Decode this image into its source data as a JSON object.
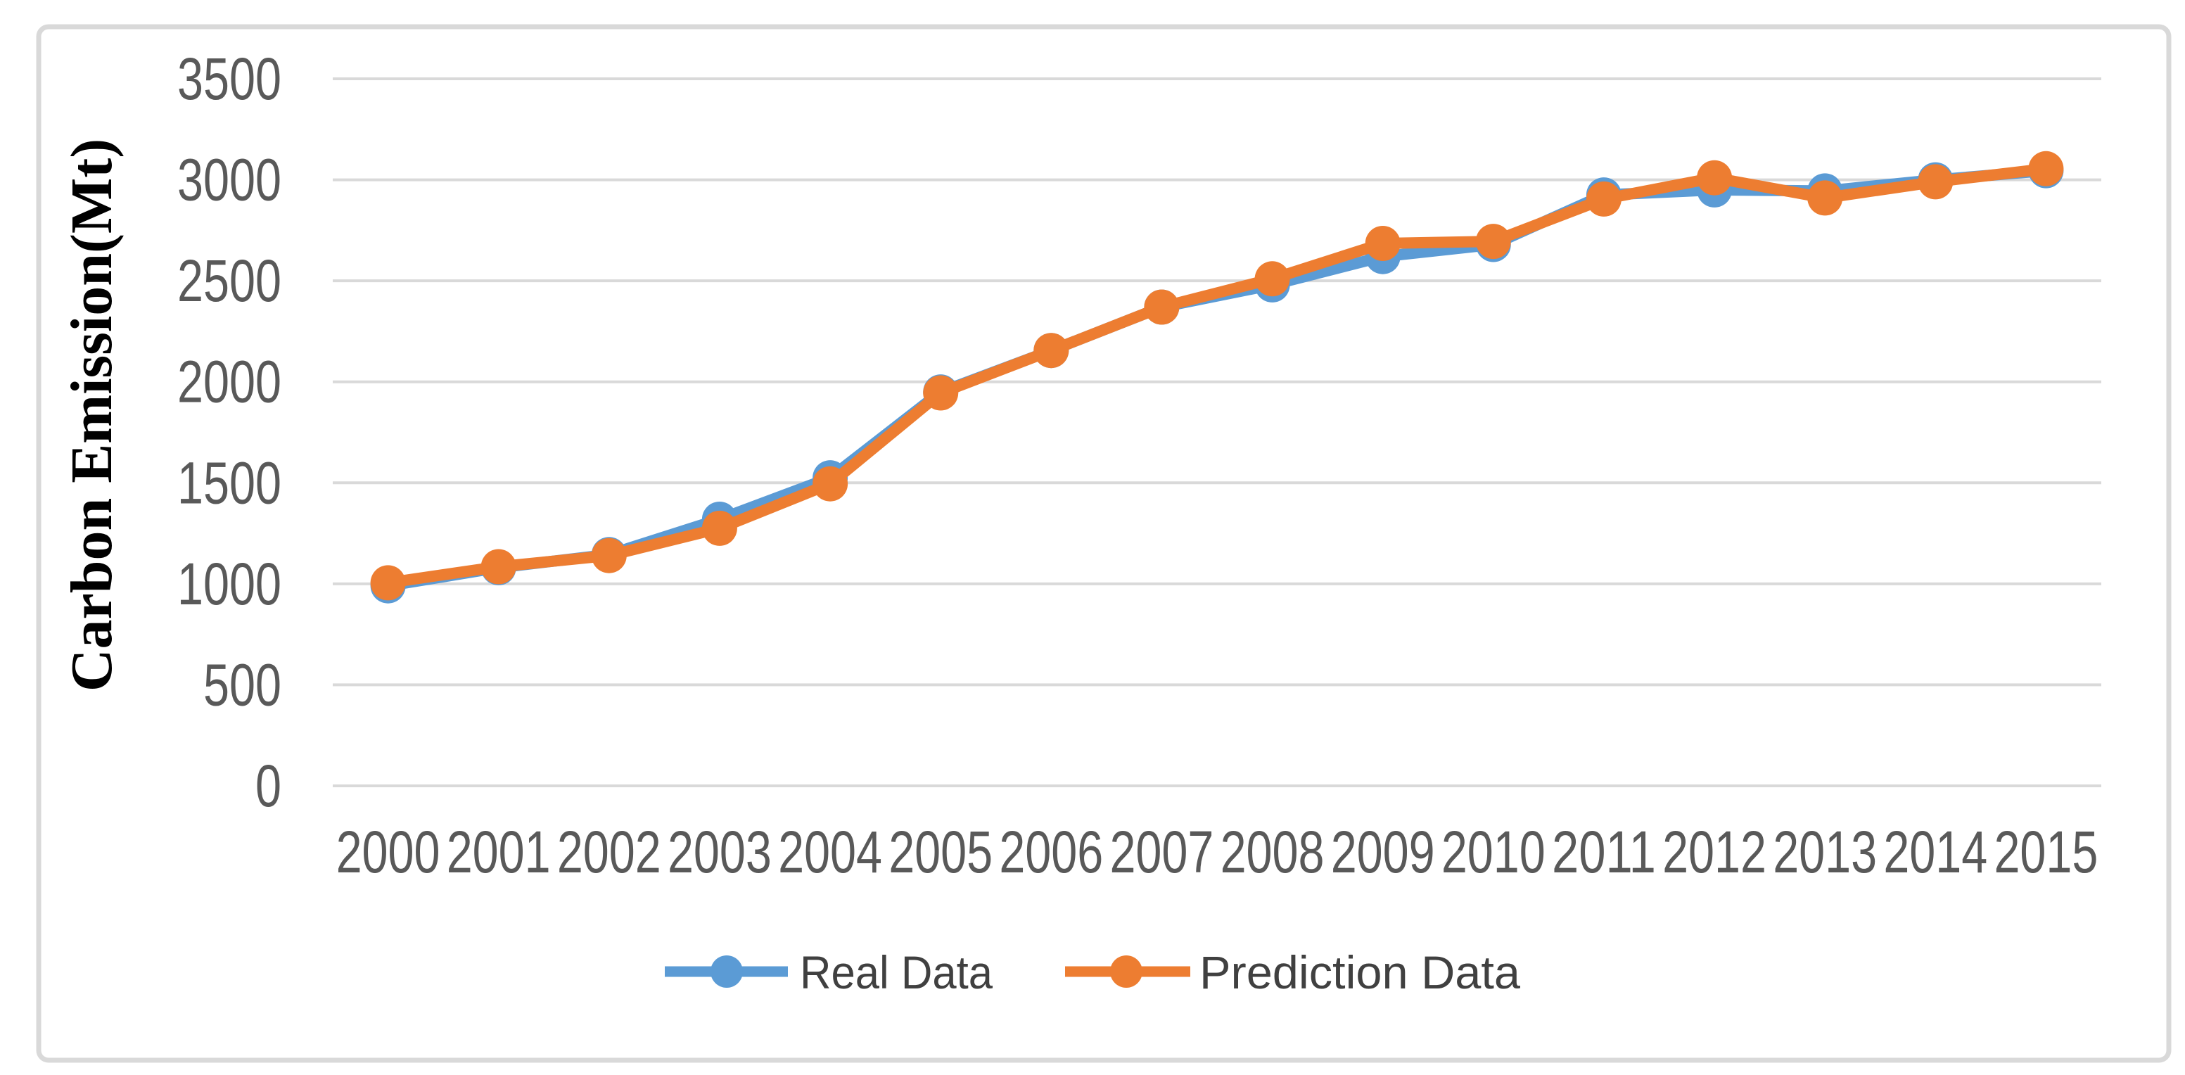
{
  "figure": {
    "background_color": "#FFFFFF",
    "border_color": "#D9D9D9",
    "grid_color": "#D9D9D9",
    "tick_label_color": "#595959",
    "legend_text_color": "#404040",
    "axis_title_color": "#000000"
  },
  "chart_data": {
    "type": "line",
    "title": "",
    "xlabel": "",
    "ylabel": "Carbon Emission(Mt)",
    "categories": [
      "2000",
      "2001",
      "2002",
      "2003",
      "2004",
      "2005",
      "2006",
      "2007",
      "2008",
      "2009",
      "2010",
      "2011",
      "2012",
      "2013",
      "2014",
      "2015"
    ],
    "series": [
      {
        "name": "Real Data",
        "color": "#5B9BD5",
        "values": [
          990,
          1080,
          1145,
          1320,
          1525,
          1950,
          2155,
          2370,
          2480,
          2620,
          2680,
          2925,
          2950,
          2945,
          3000,
          3045
        ]
      },
      {
        "name": "Prediction Data",
        "color": "#ED7D31",
        "values": [
          1005,
          1085,
          1140,
          1275,
          1495,
          1945,
          2155,
          2370,
          2510,
          2685,
          2695,
          2905,
          3010,
          2910,
          2990,
          3055
        ]
      }
    ],
    "ylim": [
      0,
      3500
    ],
    "yticks": [
      0,
      500,
      1000,
      1500,
      2000,
      2500,
      3000,
      3500
    ],
    "grid": "horizontal",
    "legend_position": "bottom",
    "marker": "circle"
  }
}
